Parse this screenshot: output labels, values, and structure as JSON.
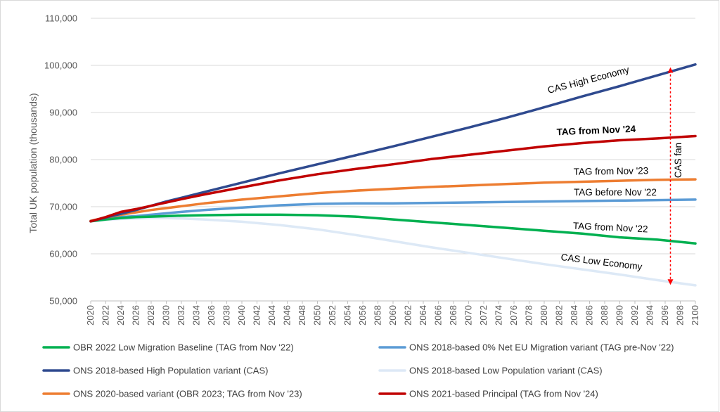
{
  "chart_data": {
    "type": "line",
    "title": "",
    "xlabel": "",
    "ylabel": "Total UK population (thousands)",
    "xlim": [
      2020,
      2100
    ],
    "ylim": [
      50000,
      110000
    ],
    "y_ticks": [
      50000,
      60000,
      70000,
      80000,
      90000,
      100000,
      110000
    ],
    "y_tick_labels": [
      "50,000",
      "60,000",
      "70,000",
      "80,000",
      "90,000",
      "100,000",
      "110,000"
    ],
    "x_ticks": [
      2020,
      2022,
      2024,
      2026,
      2028,
      2030,
      2032,
      2034,
      2036,
      2038,
      2040,
      2042,
      2044,
      2046,
      2048,
      2050,
      2052,
      2054,
      2056,
      2058,
      2060,
      2062,
      2064,
      2066,
      2068,
      2070,
      2072,
      2074,
      2076,
      2078,
      2080,
      2082,
      2084,
      2086,
      2088,
      2090,
      2092,
      2094,
      2096,
      2098,
      2100
    ],
    "grid": "horizontal",
    "legend_placement": "bottom",
    "series": [
      {
        "name": "OBR 2022 Low Migration Baseline (TAG from Nov '22)",
        "color": "#00b050",
        "x": [
          2020,
          2022,
          2024,
          2026,
          2028,
          2030,
          2032,
          2035,
          2040,
          2045,
          2050,
          2055,
          2060,
          2065,
          2070,
          2075,
          2080,
          2085,
          2090,
          2095,
          2100
        ],
        "y": [
          66900,
          67300,
          67600,
          67800,
          67900,
          68000,
          68100,
          68200,
          68300,
          68300,
          68200,
          67900,
          67300,
          66700,
          66100,
          65500,
          64900,
          64300,
          63500,
          63000,
          62200
        ]
      },
      {
        "name": "ONS 2018-based 0% Net EU Migration variant (TAG pre-Nov '22)",
        "color": "#5b9bd5",
        "x": [
          2020,
          2022,
          2024,
          2026,
          2028,
          2030,
          2032,
          2035,
          2040,
          2045,
          2050,
          2055,
          2060,
          2065,
          2070,
          2075,
          2080,
          2085,
          2090,
          2095,
          2100
        ],
        "y": [
          67000,
          67500,
          67800,
          68000,
          68300,
          68600,
          68900,
          69300,
          69800,
          70300,
          70600,
          70700,
          70700,
          70800,
          70900,
          71000,
          71100,
          71200,
          71300,
          71400,
          71500
        ]
      },
      {
        "name": "ONS 2018-based High Population variant (CAS)",
        "color": "#2f4a8f",
        "x": [
          2020,
          2022,
          2024,
          2026,
          2028,
          2030,
          2032,
          2035,
          2040,
          2045,
          2050,
          2055,
          2060,
          2065,
          2070,
          2075,
          2080,
          2085,
          2090,
          2095,
          2100
        ],
        "y": [
          66900,
          67700,
          68500,
          69300,
          70200,
          71100,
          71900,
          73100,
          75100,
          77100,
          79000,
          80900,
          82800,
          84800,
          86800,
          88900,
          91100,
          93400,
          95600,
          97900,
          100200
        ]
      },
      {
        "name": "ONS 2018-based Low Population variant (CAS)",
        "color": "#dde9f6",
        "x": [
          2020,
          2022,
          2024,
          2026,
          2028,
          2030,
          2032,
          2035,
          2040,
          2045,
          2050,
          2055,
          2060,
          2065,
          2070,
          2075,
          2080,
          2085,
          2090,
          2095,
          2100
        ],
        "y": [
          66900,
          67200,
          67400,
          67500,
          67600,
          67600,
          67500,
          67300,
          66800,
          66100,
          65200,
          64000,
          62700,
          61400,
          60200,
          59000,
          57800,
          56700,
          55600,
          54400,
          53300
        ]
      },
      {
        "name": "ONS 2020-based variant (OBR 2023; TAG from Nov '23)",
        "color": "#ed7d31",
        "x": [
          2020,
          2022,
          2024,
          2026,
          2028,
          2030,
          2032,
          2035,
          2040,
          2045,
          2050,
          2055,
          2060,
          2065,
          2070,
          2075,
          2080,
          2085,
          2090,
          2095,
          2100
        ],
        "y": [
          67000,
          67700,
          68300,
          68800,
          69300,
          69700,
          70100,
          70700,
          71500,
          72200,
          72900,
          73400,
          73800,
          74200,
          74500,
          74800,
          75100,
          75300,
          75500,
          75700,
          75800
        ]
      },
      {
        "name": "ONS 2021-based Principal (TAG from Nov '24)",
        "color": "#c00000",
        "x": [
          2020,
          2022,
          2024,
          2026,
          2028,
          2030,
          2032,
          2035,
          2040,
          2045,
          2050,
          2055,
          2060,
          2065,
          2070,
          2075,
          2080,
          2085,
          2090,
          2095,
          2100
        ],
        "y": [
          66900,
          67800,
          68900,
          69500,
          70200,
          70900,
          71600,
          72600,
          74100,
          75600,
          76900,
          78000,
          79000,
          80100,
          81000,
          81900,
          82800,
          83500,
          84100,
          84500,
          85000
        ]
      }
    ],
    "annotations": [
      {
        "text": "CAS High Economy",
        "bold": false
      },
      {
        "text": "TAG from Nov '24",
        "bold": true
      },
      {
        "text": "TAG from Nov '23",
        "bold": false
      },
      {
        "text": "TAG before Nov '22",
        "bold": false
      },
      {
        "text": "TAG from Nov '22",
        "bold": false
      },
      {
        "text": "CAS Low Economy",
        "bold": false
      },
      {
        "text": "CAS fan",
        "bold": false
      }
    ],
    "fan_arrow": {
      "x": 2098,
      "y_from": 54000,
      "y_to": 99000,
      "color": "#ff0000"
    }
  }
}
